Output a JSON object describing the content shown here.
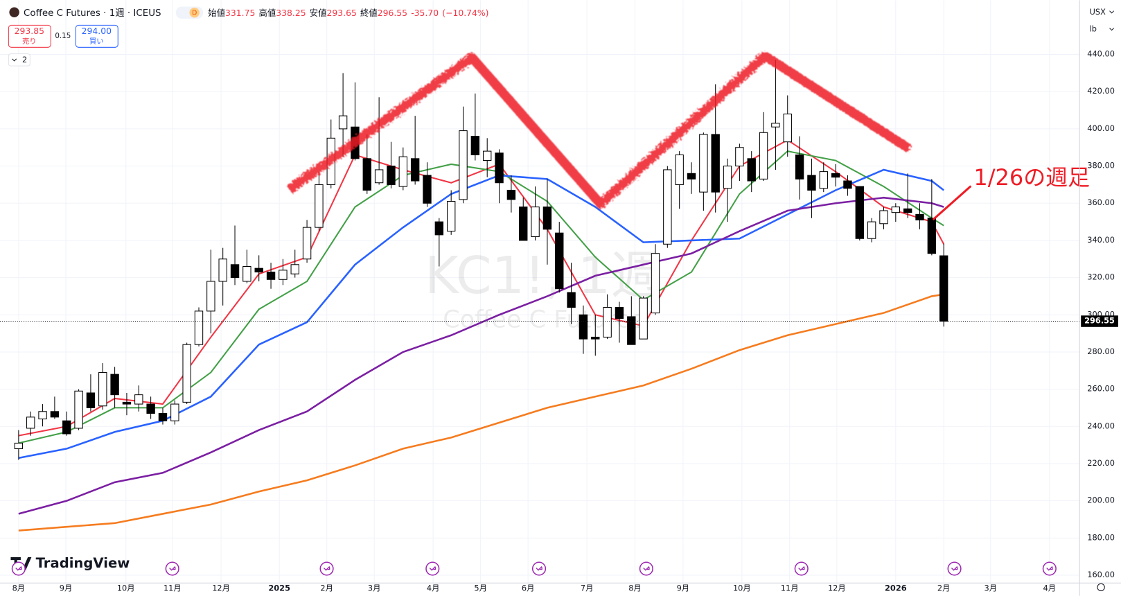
{
  "header": {
    "symbol": "Coffee C Futures · 1週 · ICEUS",
    "badge": "D",
    "open_label": "始値",
    "high_label": "高値",
    "low_label": "安値",
    "close_label": "終値",
    "change": "-35.70",
    "change_pct": "(−10.74%)",
    "sell_price": "293.85",
    "sell_label": "売り",
    "spread": "0.15",
    "buy_price": "294.00",
    "buy_label": "買い",
    "indicators_count": "2",
    "currency": "USX",
    "unit": "lb",
    "brand": "TradingView",
    "watermark_title": "KC1!, 1週",
    "watermark_subtitle": "Coffee C Futures"
  },
  "chart_data": {
    "type": "candlestick",
    "annotation": "1/26の週足",
    "open": [
      228,
      239,
      244,
      248,
      243,
      239,
      258,
      251,
      268,
      253,
      252,
      252,
      247,
      243,
      253,
      284,
      302,
      318,
      327,
      318,
      325,
      323,
      319,
      322,
      330,
      347,
      370,
      400,
      401,
      384,
      371,
      380,
      369,
      384,
      375,
      350,
      345,
      362,
      396,
      383,
      387,
      367,
      358,
      342,
      358,
      344,
      312,
      300,
      288,
      288,
      304,
      299,
      287,
      301,
      338,
      370,
      376,
      366,
      397,
      368,
      380,
      384,
      373,
      401,
      393,
      386,
      375,
      368,
      376,
      372,
      369,
      341,
      349,
      355,
      357,
      354,
      352,
      331.75
    ],
    "high": [
      238,
      248,
      252,
      256,
      248,
      260,
      268,
      274,
      272,
      258,
      262,
      256,
      250,
      254,
      285,
      304,
      335,
      336,
      348,
      335,
      332,
      328,
      330,
      335,
      351,
      377,
      405,
      430,
      425,
      397,
      417,
      393,
      390,
      407,
      382,
      352,
      367,
      412,
      419,
      395,
      389,
      375,
      363,
      369,
      373,
      350,
      328,
      305,
      300,
      311,
      307,
      310,
      310,
      338,
      380,
      388,
      382,
      398,
      424,
      384,
      392,
      388,
      409,
      437,
      418,
      396,
      384,
      382,
      381,
      375,
      369,
      352,
      358,
      360,
      376,
      360,
      373,
      338.25
    ],
    "low": [
      222,
      235,
      240,
      244,
      235,
      238,
      248,
      249,
      250,
      246,
      248,
      244,
      241,
      241,
      252,
      283,
      290,
      305,
      316,
      317,
      318,
      314,
      316,
      320,
      328,
      345,
      368,
      385,
      383,
      365,
      370,
      368,
      367,
      370,
      358,
      326,
      343,
      360,
      383,
      374,
      360,
      355,
      340,
      340,
      327,
      312,
      295,
      279,
      278,
      287,
      285,
      284,
      287,
      300,
      336,
      357,
      365,
      356,
      355,
      350,
      372,
      366,
      372,
      378,
      385,
      362,
      352,
      366,
      369,
      364,
      340,
      339,
      346,
      350,
      352,
      346,
      332,
      293.65
    ],
    "close": [
      231,
      245,
      248,
      245,
      236,
      259,
      250,
      269,
      257,
      252,
      257,
      247,
      243,
      252,
      284,
      302,
      318,
      330,
      320,
      326,
      323,
      319,
      324,
      327,
      347,
      370,
      395,
      407,
      384,
      367,
      378,
      370,
      385,
      372,
      360,
      343,
      361,
      399,
      386,
      388,
      371,
      362,
      340,
      358,
      346,
      314,
      304,
      287,
      287,
      304,
      298,
      284,
      309,
      333,
      378,
      386,
      373,
      397,
      366,
      380,
      390,
      372,
      398,
      403,
      408,
      373,
      367,
      377,
      374,
      368,
      341,
      350,
      356,
      358,
      355,
      351,
      333,
      296.55
    ],
    "up_color": "#ffffff",
    "down_color": "#000000",
    "moving_averages": [
      {
        "color": "#f23645",
        "x": [
          0,
          4,
          8,
          12,
          16,
          20,
          24,
          28,
          32,
          36,
          40,
          44,
          48,
          52,
          56,
          60,
          64,
          68,
          72,
          76,
          77
        ],
        "values": [
          235,
          240,
          255,
          252,
          288,
          322,
          331,
          386,
          378,
          371,
          381,
          346,
          300,
          294,
          340,
          380,
          394,
          377,
          358,
          350,
          338
        ]
      },
      {
        "color": "#43a047",
        "x": [
          0,
          4,
          8,
          12,
          16,
          20,
          24,
          28,
          32,
          36,
          40,
          44,
          48,
          52,
          56,
          60,
          64,
          68,
          72,
          76,
          77
        ],
        "values": [
          231,
          237,
          250,
          250,
          269,
          303,
          318,
          358,
          375,
          381,
          377,
          361,
          331,
          308,
          323,
          365,
          388,
          383,
          369,
          352,
          348
        ]
      },
      {
        "color": "#2962ff",
        "x": [
          0,
          4,
          8,
          12,
          16,
          20,
          24,
          28,
          32,
          36,
          40,
          44,
          48,
          52,
          56,
          60,
          64,
          68,
          72,
          76,
          77
        ],
        "values": [
          223,
          228,
          237,
          243,
          256,
          284,
          296,
          327,
          347,
          365,
          375,
          373,
          358,
          339,
          340,
          341,
          354,
          367,
          378,
          372,
          367
        ]
      },
      {
        "color": "#7b1fa2",
        "x": [
          0,
          4,
          8,
          12,
          16,
          20,
          24,
          28,
          32,
          36,
          40,
          44,
          48,
          52,
          56,
          60,
          64,
          68,
          72,
          76,
          77
        ],
        "values": [
          193,
          200,
          210,
          215,
          226,
          238,
          248,
          265,
          280,
          289,
          300,
          310,
          321,
          327,
          333,
          345,
          356,
          360,
          363,
          360,
          358
        ]
      },
      {
        "color": "#f57c1f",
        "x": [
          0,
          4,
          8,
          12,
          16,
          20,
          24,
          28,
          32,
          36,
          40,
          44,
          48,
          52,
          56,
          60,
          64,
          68,
          72,
          76,
          77
        ],
        "values": [
          184,
          186,
          188,
          193,
          198,
          205,
          211,
          219,
          228,
          234,
          242,
          250,
          256,
          262,
          271,
          281,
          289,
          295,
          301,
          310,
          311
        ]
      }
    ],
    "xlim": [
      -1.55,
      88.3
    ],
    "xticks": [
      {
        "value": 0,
        "label": "8月"
      },
      {
        "value": 3.93,
        "label": "9月"
      },
      {
        "value": 8.93,
        "label": "10月"
      },
      {
        "value": 12.8,
        "label": "11月"
      },
      {
        "value": 16.85,
        "label": "12月"
      },
      {
        "value": 21.7,
        "label": "2025"
      },
      {
        "value": 25.65,
        "label": "2月"
      },
      {
        "value": 29.6,
        "label": "3月"
      },
      {
        "value": 34.5,
        "label": "4月"
      },
      {
        "value": 38.45,
        "label": "5月"
      },
      {
        "value": 42.4,
        "label": "6月"
      },
      {
        "value": 47.3,
        "label": "7月"
      },
      {
        "value": 51.3,
        "label": "8月"
      },
      {
        "value": 55.3,
        "label": "9月"
      },
      {
        "value": 60.2,
        "label": "10月"
      },
      {
        "value": 64.17,
        "label": "11月"
      },
      {
        "value": 68.1,
        "label": "12月"
      },
      {
        "value": 73,
        "label": "2026"
      },
      {
        "value": 77,
        "label": "2月"
      },
      {
        "value": 80.9,
        "label": "3月"
      },
      {
        "value": 85.8,
        "label": "4月"
      }
    ],
    "ylim": [
      155.8,
      469.2
    ],
    "yticks": [
      {
        "value": 160,
        "label": "160.00"
      },
      {
        "value": 180,
        "label": "180.00"
      },
      {
        "value": 200,
        "label": "200.00"
      },
      {
        "value": 220,
        "label": "220.00"
      },
      {
        "value": 240,
        "label": "240.00"
      },
      {
        "value": 260,
        "label": "260.00"
      },
      {
        "value": 280,
        "label": "280.00"
      },
      {
        "value": 300,
        "label": "300.00"
      },
      {
        "value": 320,
        "label": "320.00"
      },
      {
        "value": 340,
        "label": "340.00"
      },
      {
        "value": 360,
        "label": "360.00"
      },
      {
        "value": 380,
        "label": "380.00"
      },
      {
        "value": 400,
        "label": "400.00"
      },
      {
        "value": 420,
        "label": "420.00"
      },
      {
        "value": 440,
        "label": "440.00"
      }
    ],
    "grid": true
  }
}
